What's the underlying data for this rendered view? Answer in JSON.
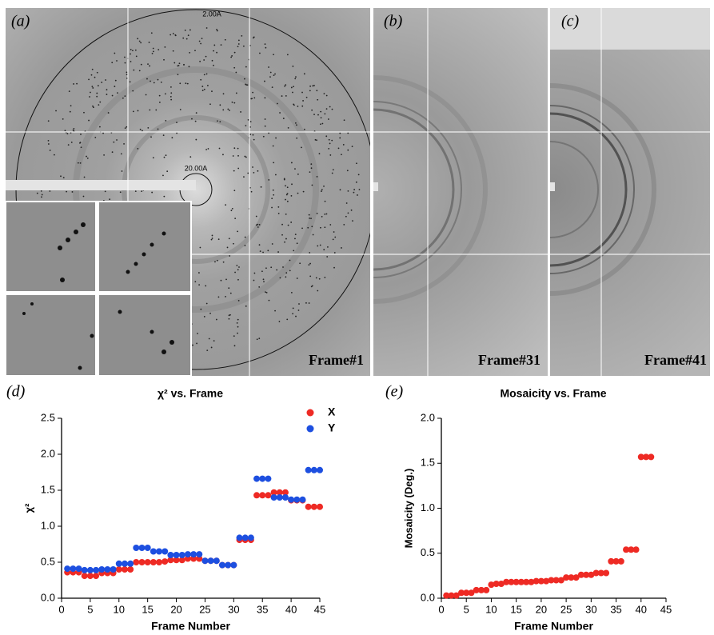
{
  "images": {
    "a": {
      "label": "(a)",
      "frame": "Frame#1",
      "outer_ring": "2.00A",
      "inner_ring": "20.00A"
    },
    "b": {
      "label": "(b)",
      "frame": "Frame#31"
    },
    "c": {
      "label": "(c)",
      "frame": "Frame#41"
    }
  },
  "chart_data": [
    {
      "type": "scatter",
      "panel_label": "(d)",
      "title": "χ² vs. Frame",
      "xlabel": "Frame Number",
      "ylabel": "χ²",
      "x": [
        1,
        2,
        3,
        4,
        5,
        6,
        7,
        8,
        9,
        10,
        11,
        12,
        13,
        14,
        15,
        16,
        17,
        18,
        19,
        20,
        21,
        22,
        23,
        24,
        25,
        26,
        27,
        28,
        29,
        30,
        31,
        32,
        33,
        34,
        35,
        36,
        37,
        38,
        39,
        40,
        41,
        42,
        43,
        44,
        45
      ],
      "series": [
        {
          "name": "X",
          "color": "#ee2a24",
          "values": [
            0.36,
            0.36,
            0.36,
            0.31,
            0.31,
            0.31,
            0.35,
            0.35,
            0.35,
            0.4,
            0.4,
            0.4,
            0.5,
            0.5,
            0.5,
            0.5,
            0.5,
            0.51,
            0.53,
            0.53,
            0.53,
            0.55,
            0.55,
            0.55,
            0.52,
            0.52,
            0.52,
            0.46,
            0.46,
            0.46,
            0.81,
            0.81,
            0.81,
            1.43,
            1.43,
            1.43,
            1.47,
            1.47,
            1.47,
            1.36,
            1.36,
            1.36,
            1.27,
            1.27,
            1.27
          ]
        },
        {
          "name": "Y",
          "color": "#1d4fe0",
          "values": [
            0.41,
            0.41,
            0.41,
            0.39,
            0.39,
            0.39,
            0.4,
            0.4,
            0.4,
            0.48,
            0.48,
            0.48,
            0.7,
            0.7,
            0.7,
            0.65,
            0.65,
            0.65,
            0.6,
            0.6,
            0.6,
            0.61,
            0.61,
            0.61,
            0.52,
            0.52,
            0.52,
            0.46,
            0.46,
            0.46,
            0.84,
            0.84,
            0.84,
            1.66,
            1.66,
            1.66,
            1.4,
            1.4,
            1.4,
            1.37,
            1.37,
            1.37,
            1.78,
            1.78,
            1.78
          ]
        }
      ],
      "xlim": [
        0,
        45
      ],
      "xticks": [
        0,
        5,
        10,
        15,
        20,
        25,
        30,
        35,
        40,
        45
      ],
      "ylim": [
        0,
        2.5
      ],
      "yticks": [
        {
          "value": 0,
          "label": "0.0"
        },
        0.5,
        {
          "value": 1,
          "label": "1.0"
        },
        1.5,
        {
          "value": 2,
          "label": "2.0"
        },
        2.5
      ],
      "legend": "upper right",
      "grid": false
    },
    {
      "type": "scatter",
      "panel_label": "(e)",
      "title": "Mosaicity vs. Frame",
      "xlabel": "Frame Number",
      "ylabel": "Mosaicity (Deg.)",
      "x": [
        1,
        2,
        3,
        4,
        5,
        6,
        7,
        8,
        9,
        10,
        11,
        12,
        13,
        14,
        15,
        16,
        17,
        18,
        19,
        20,
        21,
        22,
        23,
        24,
        25,
        26,
        27,
        28,
        29,
        30,
        31,
        32,
        33,
        34,
        35,
        36,
        37,
        38,
        39,
        40,
        41,
        42
      ],
      "series": [
        {
          "color": "#ee2a24",
          "values": [
            0.03,
            0.03,
            0.03,
            0.06,
            0.06,
            0.06,
            0.09,
            0.09,
            0.09,
            0.15,
            0.16,
            0.16,
            0.18,
            0.18,
            0.18,
            0.18,
            0.18,
            0.18,
            0.19,
            0.19,
            0.19,
            0.2,
            0.2,
            0.2,
            0.23,
            0.23,
            0.23,
            0.26,
            0.26,
            0.26,
            0.28,
            0.28,
            0.28,
            0.41,
            0.41,
            0.41,
            0.54,
            0.54,
            0.54,
            1.57,
            1.57,
            1.57
          ]
        }
      ],
      "xlim": [
        0,
        45
      ],
      "xticks": [
        0,
        5,
        10,
        15,
        20,
        25,
        30,
        35,
        40,
        45
      ],
      "ylim": [
        0,
        2
      ],
      "yticks": [
        {
          "value": 0,
          "label": "0.0"
        },
        0.5,
        {
          "value": 1,
          "label": "1.0"
        },
        1.5,
        {
          "value": 2,
          "label": "2.0"
        }
      ],
      "grid": false
    }
  ]
}
